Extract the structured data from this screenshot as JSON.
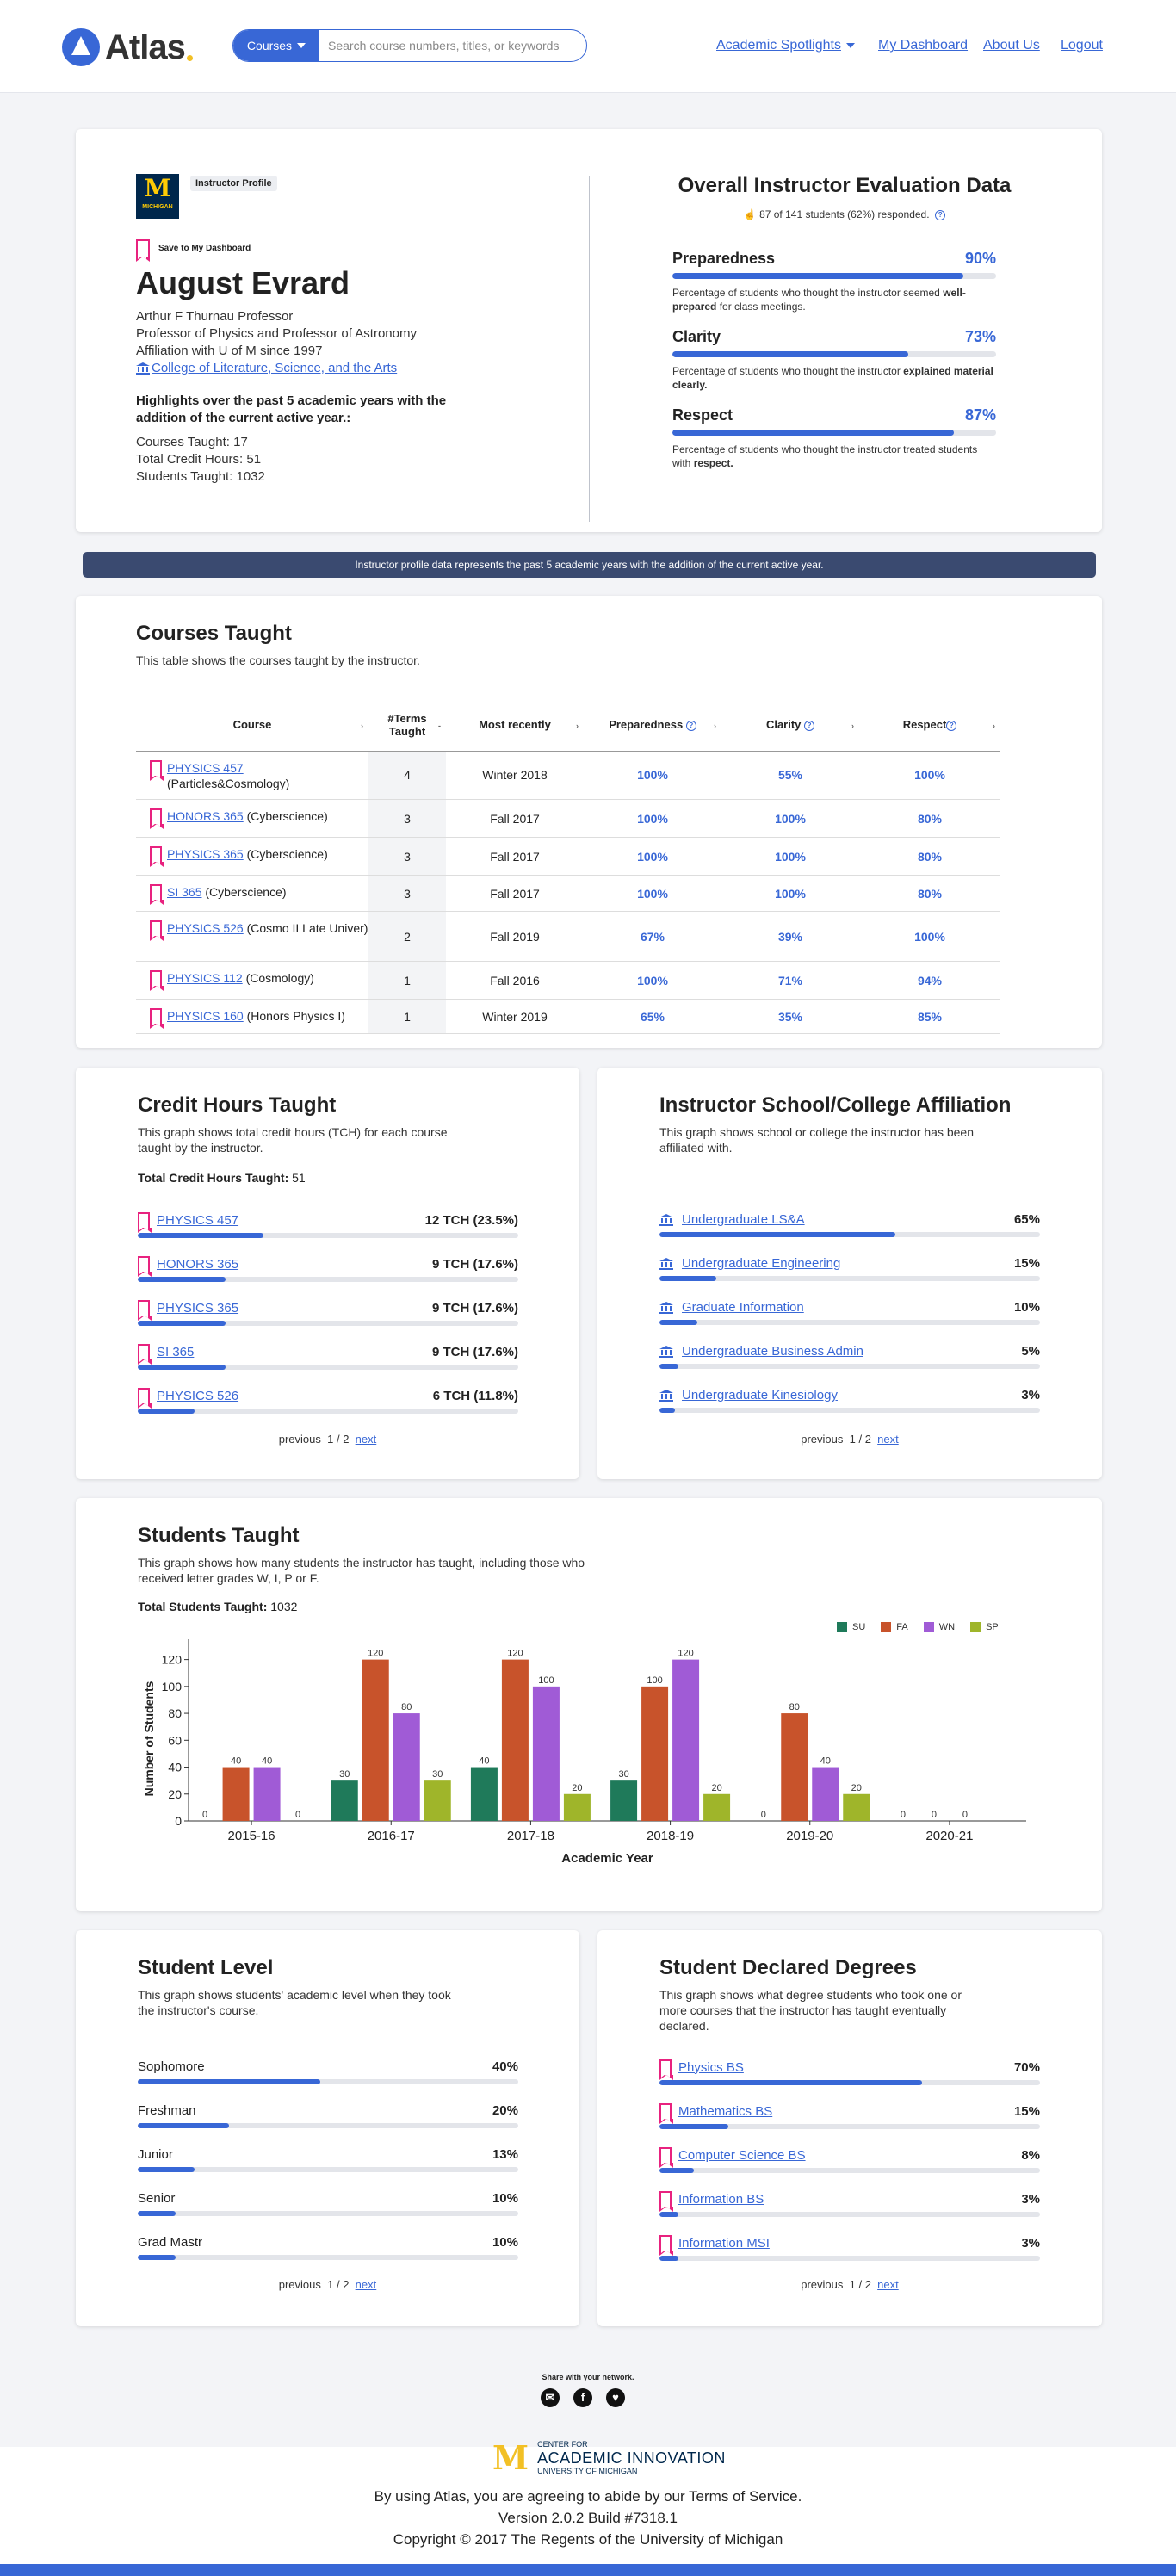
{
  "header": {
    "logo_text": "Atlas",
    "search_button": "Courses",
    "search_placeholder": "Search course numbers, titles, or keywords",
    "nav": [
      {
        "label": "Academic Spotlights"
      },
      {
        "label": "My Dashboard"
      },
      {
        "label": "About Us"
      },
      {
        "label": "Logout"
      }
    ]
  },
  "profile": {
    "logo_letter": "M",
    "logo_label": "MICHIGAN",
    "badge": "Instructor Profile",
    "save_label": "Save to My Dashboard",
    "name": "August Evrard",
    "title": "Arthur F Thurnau Professor",
    "position": "Professor of Physics and Professor of Astronomy",
    "affiliation": "Affiliation with U of M since 1997",
    "college": "College of Literature, Science, and the Arts",
    "highlights": "Highlights over the past 5 academic years with the addition of the current active year.:",
    "courses_taught": "Courses Taught: 17",
    "credit_hours": "Total Credit Hours: 51",
    "students_taught": "Students Taught: 1032"
  },
  "evaluation": {
    "title": "Overall Instructor Evaluation Data",
    "responded": "87 of 141 students (62%) responded.",
    "metrics": [
      {
        "label": "Preparedness",
        "pct": "90%",
        "value": 90,
        "desc_pre": "Percentage of students who thought the instructor seemed ",
        "desc_bold": "well-prepared",
        "desc_post": " for class meetings."
      },
      {
        "label": "Clarity",
        "pct": "73%",
        "value": 73,
        "desc_pre": "Percentage of students who thought the instructor ",
        "desc_bold": "explained material clearly.",
        "desc_post": ""
      },
      {
        "label": "Respect",
        "pct": "87%",
        "value": 87,
        "desc_pre": "Percentage of students who thought the instructor treated students with ",
        "desc_bold": "respect.",
        "desc_post": ""
      }
    ]
  },
  "banner": "Instructor profile data represents the past 5 academic years with the addition of the current active year.",
  "courses": {
    "title": "Courses Taught",
    "desc": "This table shows the courses taught by the instructor.",
    "headers": {
      "course": "Course",
      "terms": "#Terms Taught",
      "recent": "Most recently",
      "prep": "Preparedness",
      "clarity": "Clarity",
      "respect": "Respect"
    },
    "rows": [
      {
        "code": "PHYSICS 457",
        "name": "(Particles&Cosmology)",
        "terms": "4",
        "recent": "Winter 2018",
        "prep": "100%",
        "clarity": "55%",
        "respect": "100%"
      },
      {
        "code": "HONORS 365",
        "name": "(Cyberscience)",
        "terms": "3",
        "recent": "Fall 2017",
        "prep": "100%",
        "clarity": "100%",
        "respect": "80%"
      },
      {
        "code": "PHYSICS 365",
        "name": "(Cyberscience)",
        "terms": "3",
        "recent": "Fall 2017",
        "prep": "100%",
        "clarity": "100%",
        "respect": "80%"
      },
      {
        "code": "SI 365",
        "name": "(Cyberscience)",
        "terms": "3",
        "recent": "Fall 2017",
        "prep": "100%",
        "clarity": "100%",
        "respect": "80%"
      },
      {
        "code": "PHYSICS 526",
        "name": "(Cosmo II Late Univer)",
        "terms": "2",
        "recent": "Fall 2019",
        "prep": "67%",
        "clarity": "39%",
        "respect": "100%"
      },
      {
        "code": "PHYSICS 112",
        "name": "(Cosmology)",
        "terms": "1",
        "recent": "Fall 2016",
        "prep": "100%",
        "clarity": "71%",
        "respect": "94%"
      },
      {
        "code": "PHYSICS 160",
        "name": "(Honors Physics I)",
        "terms": "1",
        "recent": "Winter 2019",
        "prep": "65%",
        "clarity": "35%",
        "respect": "85%"
      }
    ]
  },
  "credit_hours": {
    "title": "Credit Hours Taught",
    "desc": "This graph shows total credit hours (TCH) for each course taught by the instructor.",
    "total_label": "Total Credit Hours Taught:",
    "total_value": " 51",
    "items": [
      {
        "label": "PHYSICS 457",
        "value": "12 TCH (23.5%)",
        "pct": 33
      },
      {
        "label": "HONORS 365",
        "value": "9 TCH (17.6%)",
        "pct": 23
      },
      {
        "label": "PHYSICS 365",
        "value": "9 TCH (17.6%)",
        "pct": 23
      },
      {
        "label": "SI 365",
        "value": "9 TCH (17.6%)",
        "pct": 23
      },
      {
        "label": "PHYSICS 526",
        "value": "6 TCH (11.8%)",
        "pct": 15
      }
    ],
    "pager_prev": "previous",
    "pager_page": "1 / 2",
    "pager_next": "next"
  },
  "affiliation": {
    "title": "Instructor School/College Affiliation",
    "desc": "This graph shows school or college the instructor has been affiliated with.",
    "items": [
      {
        "label": "Undergraduate LS&A",
        "value": "65%",
        "pct": 62
      },
      {
        "label": "Undergraduate Engineering",
        "value": "15%",
        "pct": 15
      },
      {
        "label": "Graduate Information",
        "value": "10%",
        "pct": 10
      },
      {
        "label": "Undergraduate Business Admin",
        "value": "5%",
        "pct": 5
      },
      {
        "label": "Undergraduate Kinesiology",
        "value": "3%",
        "pct": 4
      }
    ],
    "pager_prev": "previous",
    "pager_page": "1 / 2",
    "pager_next": "next"
  },
  "students": {
    "title": "Students Taught",
    "desc": "This graph shows how many students the instructor has taught, including those who received letter grades W, I, P or F.",
    "total_label": "Total Students Taught:",
    "total_value": " 1032"
  },
  "chart_data": {
    "type": "bar",
    "categories": [
      "2015-16",
      "2016-17",
      "2017-18",
      "2018-19",
      "2019-20",
      "2020-21"
    ],
    "series": [
      {
        "name": "SU",
        "color": "#1f7a5a",
        "values": [
          0,
          30,
          40,
          30,
          0,
          0
        ]
      },
      {
        "name": "FA",
        "color": "#c8532b",
        "values": [
          40,
          120,
          120,
          100,
          80,
          0
        ]
      },
      {
        "name": "WN",
        "color": "#a05bd6",
        "values": [
          40,
          80,
          100,
          120,
          40,
          0
        ]
      },
      {
        "name": "SP",
        "color": "#9fb52a",
        "values": [
          0,
          30,
          20,
          20,
          20,
          null
        ]
      }
    ],
    "xlabel": "Academic Year",
    "ylabel": "Number of Students",
    "ylim": [
      0,
      130
    ],
    "yticks": [
      0,
      20,
      40,
      60,
      80,
      100,
      120
    ],
    "legend": "top-right"
  },
  "student_level": {
    "title": "Student Level",
    "desc": "This graph shows students' academic level when they took the instructor's course.",
    "items": [
      {
        "label": "Sophomore",
        "value": "40%",
        "pct": 48
      },
      {
        "label": "Freshman",
        "value": "20%",
        "pct": 24
      },
      {
        "label": "Junior",
        "value": "13%",
        "pct": 15
      },
      {
        "label": "Senior",
        "value": "10%",
        "pct": 10
      },
      {
        "label": "Grad Mastr",
        "value": "10%",
        "pct": 10
      }
    ],
    "pager_prev": "previous",
    "pager_page": "1 / 2",
    "pager_next": "next"
  },
  "degrees": {
    "title": "Student Declared Degrees",
    "desc": "This graph shows what degree students who took one or more courses that the instructor has taught eventually declared.",
    "items": [
      {
        "label": "Physics BS",
        "value": "70%",
        "pct": 69
      },
      {
        "label": "Mathematics BS",
        "value": "15%",
        "pct": 18
      },
      {
        "label": "Computer Science BS",
        "value": "8%",
        "pct": 9
      },
      {
        "label": "Information BS",
        "value": "3%",
        "pct": 5
      },
      {
        "label": "Information MSI",
        "value": "3%",
        "pct": 5
      }
    ],
    "pager_prev": "previous",
    "pager_page": "1 / 2",
    "pager_next": "next"
  },
  "footer": {
    "share": "Share with your network.",
    "share_icons": [
      "email-icon",
      "facebook-icon",
      "twitter-icon"
    ],
    "cai_top": "CENTER FOR",
    "cai_mid": "ACADEMIC INNOVATION",
    "cai_bot": "UNIVERSITY OF MICHIGAN",
    "terms": "By using Atlas, you are agreeing to abide by our Terms of Service.",
    "version": "Version 2.0.2 Build #7318.1",
    "copyright": "Copyright © 2017 The Regents of the University of Michigan"
  }
}
